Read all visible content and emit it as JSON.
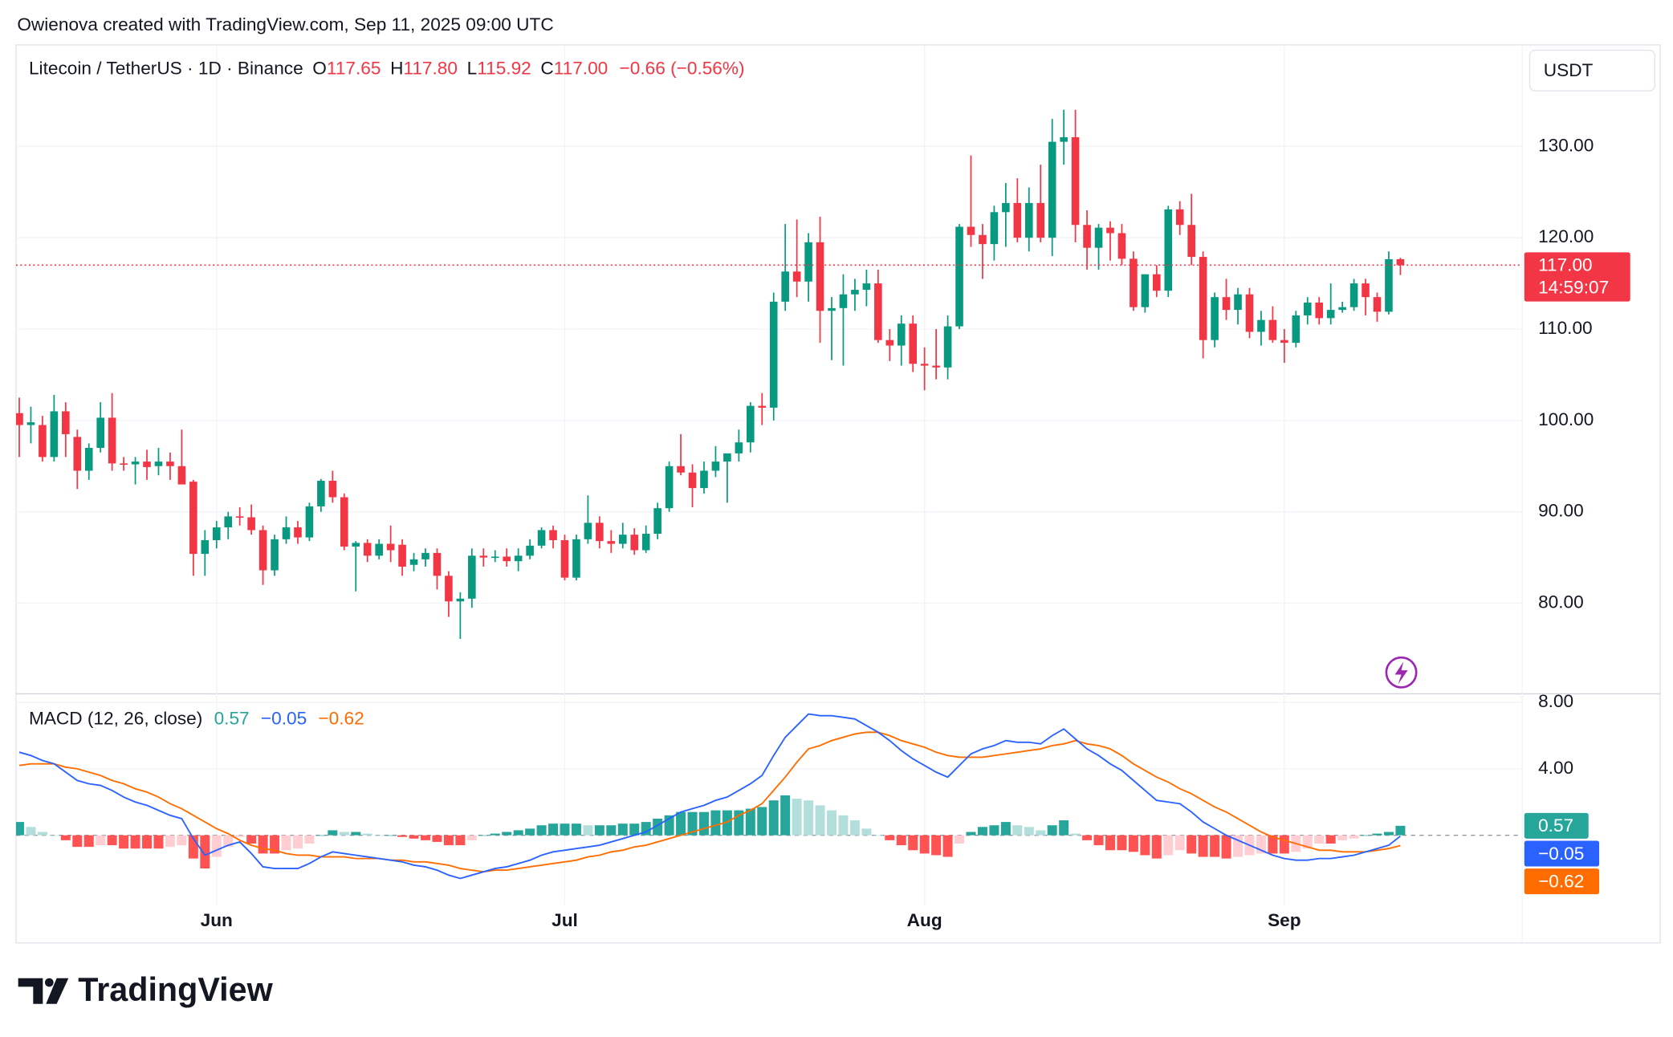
{
  "attribution": "Owienova created with TradingView.com, Sep 11, 2025 09:00 UTC",
  "brand": "TradingView",
  "chart_data": [
    {
      "type": "candlestick",
      "title": "Litecoin / TetherUS · 1D · Binance",
      "ohlc": [
        {
          "label": "O",
          "value": "117.65"
        },
        {
          "label": "H",
          "value": "117.80"
        },
        {
          "label": "L",
          "value": "115.92"
        },
        {
          "label": "C",
          "value": "117.00"
        }
      ],
      "change": "−0.66 (−0.56%)",
      "currency": "USDT",
      "countdown": "14:59:07",
      "up_color": "#089981",
      "down_color": "#f23645",
      "candles": [
        [
          100.8,
          102.5,
          96,
          99.5
        ],
        [
          99.5,
          101.5,
          97.5,
          99.8
        ],
        [
          99.5,
          100.5,
          95.5,
          96
        ],
        [
          96,
          102.8,
          95.5,
          101
        ],
        [
          101,
          102,
          96,
          98.5
        ],
        [
          98.2,
          99,
          92.5,
          94.5
        ],
        [
          94.5,
          97.5,
          93.5,
          97
        ],
        [
          97,
          102,
          96.5,
          100.3
        ],
        [
          100.3,
          103,
          94.5,
          95.3
        ],
        [
          95.3,
          96,
          94.5,
          95.2
        ],
        [
          95.2,
          96,
          93,
          95.5
        ],
        [
          95.5,
          96.8,
          93.5,
          94.9
        ],
        [
          95,
          97,
          94,
          95.5
        ],
        [
          95.5,
          96.5,
          93.5,
          95
        ],
        [
          95,
          99,
          93,
          93
        ],
        [
          93.3,
          93.5,
          83,
          85.4
        ],
        [
          85.4,
          88,
          83,
          86.9
        ],
        [
          86.9,
          89,
          86,
          88.3
        ],
        [
          88.3,
          90,
          87,
          89.5
        ],
        [
          89.5,
          90.5,
          88.5,
          89.4
        ],
        [
          89.4,
          90.8,
          87.5,
          88
        ],
        [
          88,
          88.5,
          82,
          83.6
        ],
        [
          83.6,
          87.5,
          83,
          87
        ],
        [
          87,
          89.5,
          86.5,
          88.3
        ],
        [
          88.3,
          89,
          86.5,
          87.2
        ],
        [
          87.2,
          91,
          86.8,
          90.6
        ],
        [
          90.6,
          93.6,
          90,
          93.4
        ],
        [
          93.4,
          94.5,
          91,
          91.6
        ],
        [
          91.6,
          92,
          85.8,
          86.2
        ],
        [
          86.2,
          86.8,
          81.3,
          86.6
        ],
        [
          86.6,
          87,
          84.5,
          85.2
        ],
        [
          85.2,
          87,
          84.8,
          86.5
        ],
        [
          86.5,
          88.5,
          84.5,
          85.8
        ],
        [
          86.4,
          87,
          83,
          84
        ],
        [
          84.2,
          85.5,
          83.5,
          84.8
        ],
        [
          84.8,
          86,
          84,
          85.5
        ],
        [
          85.5,
          86,
          81.5,
          83
        ],
        [
          83,
          83.5,
          78.5,
          80.2
        ],
        [
          80.2,
          81.2,
          76.1,
          80.5
        ],
        [
          80.5,
          86,
          79.5,
          85.2
        ],
        [
          85.2,
          86,
          84,
          85
        ],
        [
          85,
          85.8,
          84.5,
          85.1
        ],
        [
          85.1,
          86,
          84,
          84.6
        ],
        [
          84.6,
          86,
          83.5,
          85.2
        ],
        [
          85.2,
          87,
          84.8,
          86.3
        ],
        [
          86.3,
          88.3,
          86,
          88
        ],
        [
          88,
          88.5,
          86,
          86.9
        ],
        [
          86.9,
          87.5,
          82.5,
          82.8
        ],
        [
          82.8,
          87.5,
          82.5,
          87
        ],
        [
          87,
          91.8,
          86.5,
          88.8
        ],
        [
          88.8,
          89.5,
          86,
          86.8
        ],
        [
          86.8,
          88,
          85.5,
          86.5
        ],
        [
          86.5,
          88.8,
          86,
          87.5
        ],
        [
          87.5,
          88.2,
          85.3,
          85.8
        ],
        [
          85.8,
          88.5,
          85.5,
          87.6
        ],
        [
          87.6,
          91,
          87,
          90.4
        ],
        [
          90.4,
          95.5,
          90,
          95
        ],
        [
          95,
          98.5,
          94,
          94.3
        ],
        [
          94.3,
          95.2,
          90.5,
          92.6
        ],
        [
          92.6,
          95.5,
          92,
          94.5
        ],
        [
          94.5,
          97.2,
          93.8,
          95.5
        ],
        [
          95.5,
          96.3,
          91,
          96.4
        ],
        [
          96.4,
          99,
          95.5,
          97.6
        ],
        [
          97.6,
          102,
          96.5,
          101.6
        ],
        [
          101.6,
          103,
          99.5,
          101.4
        ],
        [
          101.4,
          114,
          100,
          113
        ],
        [
          113,
          121.5,
          112,
          116.3
        ],
        [
          116.3,
          122,
          113.5,
          115.2
        ],
        [
          115.2,
          120.5,
          113,
          119.5
        ],
        [
          119.5,
          122.3,
          108.5,
          112
        ],
        [
          112,
          113.5,
          106.6,
          112.3
        ],
        [
          112.3,
          116,
          106,
          113.8
        ],
        [
          113.8,
          115.5,
          112,
          114.3
        ],
        [
          114.3,
          116.5,
          112.5,
          115
        ],
        [
          115,
          116.5,
          108.5,
          108.8
        ],
        [
          108.8,
          110,
          106.5,
          108.2
        ],
        [
          108.2,
          111.5,
          106,
          110.6
        ],
        [
          110.6,
          111.5,
          105.3,
          106.2
        ],
        [
          106.2,
          108,
          103.3,
          106
        ],
        [
          106,
          110,
          104.5,
          105.8
        ],
        [
          105.8,
          111.5,
          104.5,
          110.3
        ],
        [
          110.3,
          121.5,
          110,
          121.2
        ],
        [
          121.2,
          129,
          119,
          120.3
        ],
        [
          120.3,
          121.5,
          115.5,
          119.3
        ],
        [
          119.3,
          123.5,
          117.5,
          122.8
        ],
        [
          122.8,
          126,
          119,
          123.8
        ],
        [
          123.8,
          126.5,
          119.5,
          120
        ],
        [
          120,
          125.5,
          118.5,
          123.8
        ],
        [
          123.8,
          128,
          119.5,
          120
        ],
        [
          120,
          133,
          118,
          130.5
        ],
        [
          130.5,
          134,
          128,
          131
        ],
        [
          131,
          134,
          119.5,
          121.4
        ],
        [
          121.4,
          123,
          116.5,
          118.9
        ],
        [
          118.9,
          121.5,
          116.5,
          121.1
        ],
        [
          121.1,
          121.8,
          117.5,
          120.5
        ],
        [
          120.5,
          121.5,
          117,
          117.7
        ],
        [
          117.7,
          118.5,
          112,
          112.4
        ],
        [
          112.4,
          116,
          111.8,
          116
        ],
        [
          116,
          117,
          113.5,
          114.2
        ],
        [
          114.2,
          123.5,
          113.5,
          123.1
        ],
        [
          123.1,
          124,
          120.3,
          121.4
        ],
        [
          121.4,
          124.8,
          117,
          117.9
        ],
        [
          117.9,
          118.5,
          106.8,
          108.8
        ],
        [
          108.8,
          114,
          108,
          113.5
        ],
        [
          113.5,
          115.5,
          111,
          112.1
        ],
        [
          112.1,
          114.5,
          110.5,
          113.8
        ],
        [
          113.8,
          114.5,
          109,
          109.7
        ],
        [
          109.7,
          112,
          108.2,
          111
        ],
        [
          111,
          112.5,
          108.5,
          108.8
        ],
        [
          108.8,
          110,
          106.3,
          108.5
        ],
        [
          108.5,
          112,
          108,
          111.5
        ],
        [
          111.5,
          113.5,
          110.5,
          112.9
        ],
        [
          112.9,
          113.5,
          110.5,
          111.2
        ],
        [
          111.2,
          115,
          110.5,
          112.1
        ],
        [
          112.1,
          113,
          111.8,
          112.4
        ],
        [
          112.4,
          115.5,
          112,
          115
        ],
        [
          115,
          115.5,
          111.5,
          113.5
        ],
        [
          113.5,
          114,
          110.8,
          111.9
        ],
        [
          111.9,
          118.5,
          111.6,
          117.65
        ],
        [
          117.65,
          117.8,
          115.92,
          117
        ]
      ],
      "ylim": [
        70.2,
        140.4
      ],
      "yticks": [
        {
          "value": 80,
          "label": "80.00"
        },
        {
          "value": 90,
          "label": "90.00"
        },
        {
          "value": 100,
          "label": "100.00"
        },
        {
          "value": 110,
          "label": "110.00"
        },
        {
          "value": 120,
          "label": "120.00"
        },
        {
          "value": 130,
          "label": "130.00"
        }
      ],
      "xticks": [
        {
          "value": 17,
          "label": "Jun"
        },
        {
          "value": 47,
          "label": "Jul"
        },
        {
          "value": 78,
          "label": "Aug"
        },
        {
          "value": 109,
          "label": "Sep"
        }
      ],
      "grid": true,
      "last_price_line": true
    },
    {
      "type": "macd",
      "title": "MACD (12, 26, close)",
      "value_labels": {
        "histogram": "0.57",
        "macd": "−0.05",
        "signal": "−0.62"
      },
      "histogram": {
        "colors": [
          "#26a69a",
          "#b2dfdb",
          "#ff5252",
          "#ffcdd2"
        ],
        "values": [
          0.8,
          0.5,
          0.2,
          0.0,
          -0.3,
          -0.7,
          -0.7,
          -0.6,
          -0.6,
          -0.8,
          -0.8,
          -0.8,
          -0.8,
          -0.7,
          -0.6,
          -1.4,
          -2.0,
          -1.3,
          -0.7,
          -0.1,
          -0.5,
          -1.1,
          -1.1,
          -0.9,
          -0.8,
          -0.5,
          0.0,
          0.3,
          0.2,
          0.2,
          0.1,
          0.0,
          0.0,
          -0.1,
          -0.2,
          -0.3,
          -0.4,
          -0.6,
          -0.6,
          -0.3,
          0.0,
          0.1,
          0.2,
          0.3,
          0.4,
          0.6,
          0.7,
          0.7,
          0.7,
          0.6,
          0.6,
          0.6,
          0.7,
          0.7,
          0.8,
          1.0,
          1.2,
          1.4,
          1.4,
          1.4,
          1.5,
          1.5,
          1.5,
          1.6,
          1.7,
          2.1,
          2.4,
          2.2,
          2.1,
          1.8,
          1.5,
          1.2,
          0.9,
          0.4,
          0.0,
          -0.3,
          -0.6,
          -0.9,
          -1.1,
          -1.2,
          -1.3,
          -0.5,
          0.2,
          0.5,
          0.6,
          0.8,
          0.6,
          0.5,
          0.3,
          0.6,
          0.9,
          0.1,
          -0.3,
          -0.6,
          -0.9,
          -0.9,
          -1.0,
          -1.2,
          -1.4,
          -1.2,
          -0.9,
          -1.1,
          -1.3,
          -1.3,
          -1.4,
          -1.3,
          -1.2,
          -1.1,
          -1.1,
          -1.1,
          -1.0,
          -0.8,
          -0.5,
          -0.5,
          -0.3,
          -0.2,
          0.0,
          0.1,
          0.2,
          0.57
        ]
      },
      "macd": {
        "color": "#2962ff",
        "values": [
          5.0,
          4.8,
          4.5,
          4.3,
          3.8,
          3.3,
          3.1,
          3.0,
          2.7,
          2.3,
          2.0,
          1.8,
          1.5,
          1.2,
          1.0,
          -0.2,
          -1.2,
          -0.9,
          -0.6,
          -0.4,
          -1.1,
          -1.9,
          -2.0,
          -2.0,
          -2.0,
          -1.7,
          -1.3,
          -1.0,
          -1.1,
          -1.2,
          -1.3,
          -1.4,
          -1.5,
          -1.6,
          -1.8,
          -1.9,
          -2.1,
          -2.4,
          -2.6,
          -2.4,
          -2.2,
          -2.0,
          -1.9,
          -1.7,
          -1.5,
          -1.2,
          -1.0,
          -0.9,
          -0.8,
          -0.7,
          -0.6,
          -0.4,
          -0.2,
          0.0,
          0.2,
          0.6,
          1.0,
          1.4,
          1.6,
          1.8,
          2.1,
          2.3,
          2.7,
          3.1,
          3.6,
          4.8,
          5.9,
          6.6,
          7.3,
          7.2,
          7.2,
          7.1,
          7.0,
          6.6,
          6.2,
          5.7,
          5.1,
          4.6,
          4.2,
          3.8,
          3.5,
          4.2,
          4.9,
          5.2,
          5.4,
          5.7,
          5.6,
          5.6,
          5.5,
          6.0,
          6.4,
          5.8,
          5.2,
          4.8,
          4.3,
          3.9,
          3.3,
          2.7,
          2.1,
          2.0,
          1.9,
          1.4,
          0.8,
          0.4,
          0.0,
          -0.3,
          -0.6,
          -0.9,
          -1.2,
          -1.4,
          -1.5,
          -1.5,
          -1.4,
          -1.4,
          -1.3,
          -1.2,
          -1.0,
          -0.8,
          -0.6,
          -0.05
        ]
      },
      "signal": {
        "color": "#ff6d00",
        "values": [
          4.2,
          4.3,
          4.3,
          4.3,
          4.1,
          4.0,
          3.8,
          3.6,
          3.3,
          3.1,
          2.8,
          2.6,
          2.3,
          1.9,
          1.6,
          1.2,
          0.8,
          0.4,
          0.1,
          -0.3,
          -0.6,
          -0.8,
          -0.9,
          -1.1,
          -1.2,
          -1.2,
          -1.3,
          -1.3,
          -1.3,
          -1.4,
          -1.4,
          -1.4,
          -1.5,
          -1.5,
          -1.6,
          -1.6,
          -1.7,
          -1.8,
          -2.0,
          -2.1,
          -2.2,
          -2.1,
          -2.1,
          -2.0,
          -1.9,
          -1.8,
          -1.7,
          -1.6,
          -1.5,
          -1.3,
          -1.2,
          -1.0,
          -0.9,
          -0.7,
          -0.6,
          -0.4,
          -0.2,
          0.0,
          0.2,
          0.4,
          0.6,
          0.8,
          1.2,
          1.5,
          1.9,
          2.7,
          3.5,
          4.4,
          5.2,
          5.4,
          5.7,
          5.9,
          6.1,
          6.2,
          6.2,
          6.0,
          5.7,
          5.5,
          5.3,
          5.0,
          4.8,
          4.7,
          4.7,
          4.7,
          4.8,
          4.9,
          5.0,
          5.1,
          5.2,
          5.4,
          5.5,
          5.7,
          5.5,
          5.4,
          5.2,
          4.8,
          4.3,
          3.9,
          3.5,
          3.2,
          2.8,
          2.5,
          2.1,
          1.7,
          1.4,
          1.0,
          0.6,
          0.2,
          -0.1,
          -0.3,
          -0.5,
          -0.7,
          -0.9,
          -0.9,
          -1.0,
          -1.0,
          -1.0,
          -0.9,
          -0.8,
          -0.62
        ]
      },
      "ylim": [
        -4.1,
        8.45
      ],
      "yticks": [
        {
          "value": 4,
          "label": "4.00"
        },
        {
          "value": 8,
          "label": "8.00"
        }
      ]
    }
  ]
}
